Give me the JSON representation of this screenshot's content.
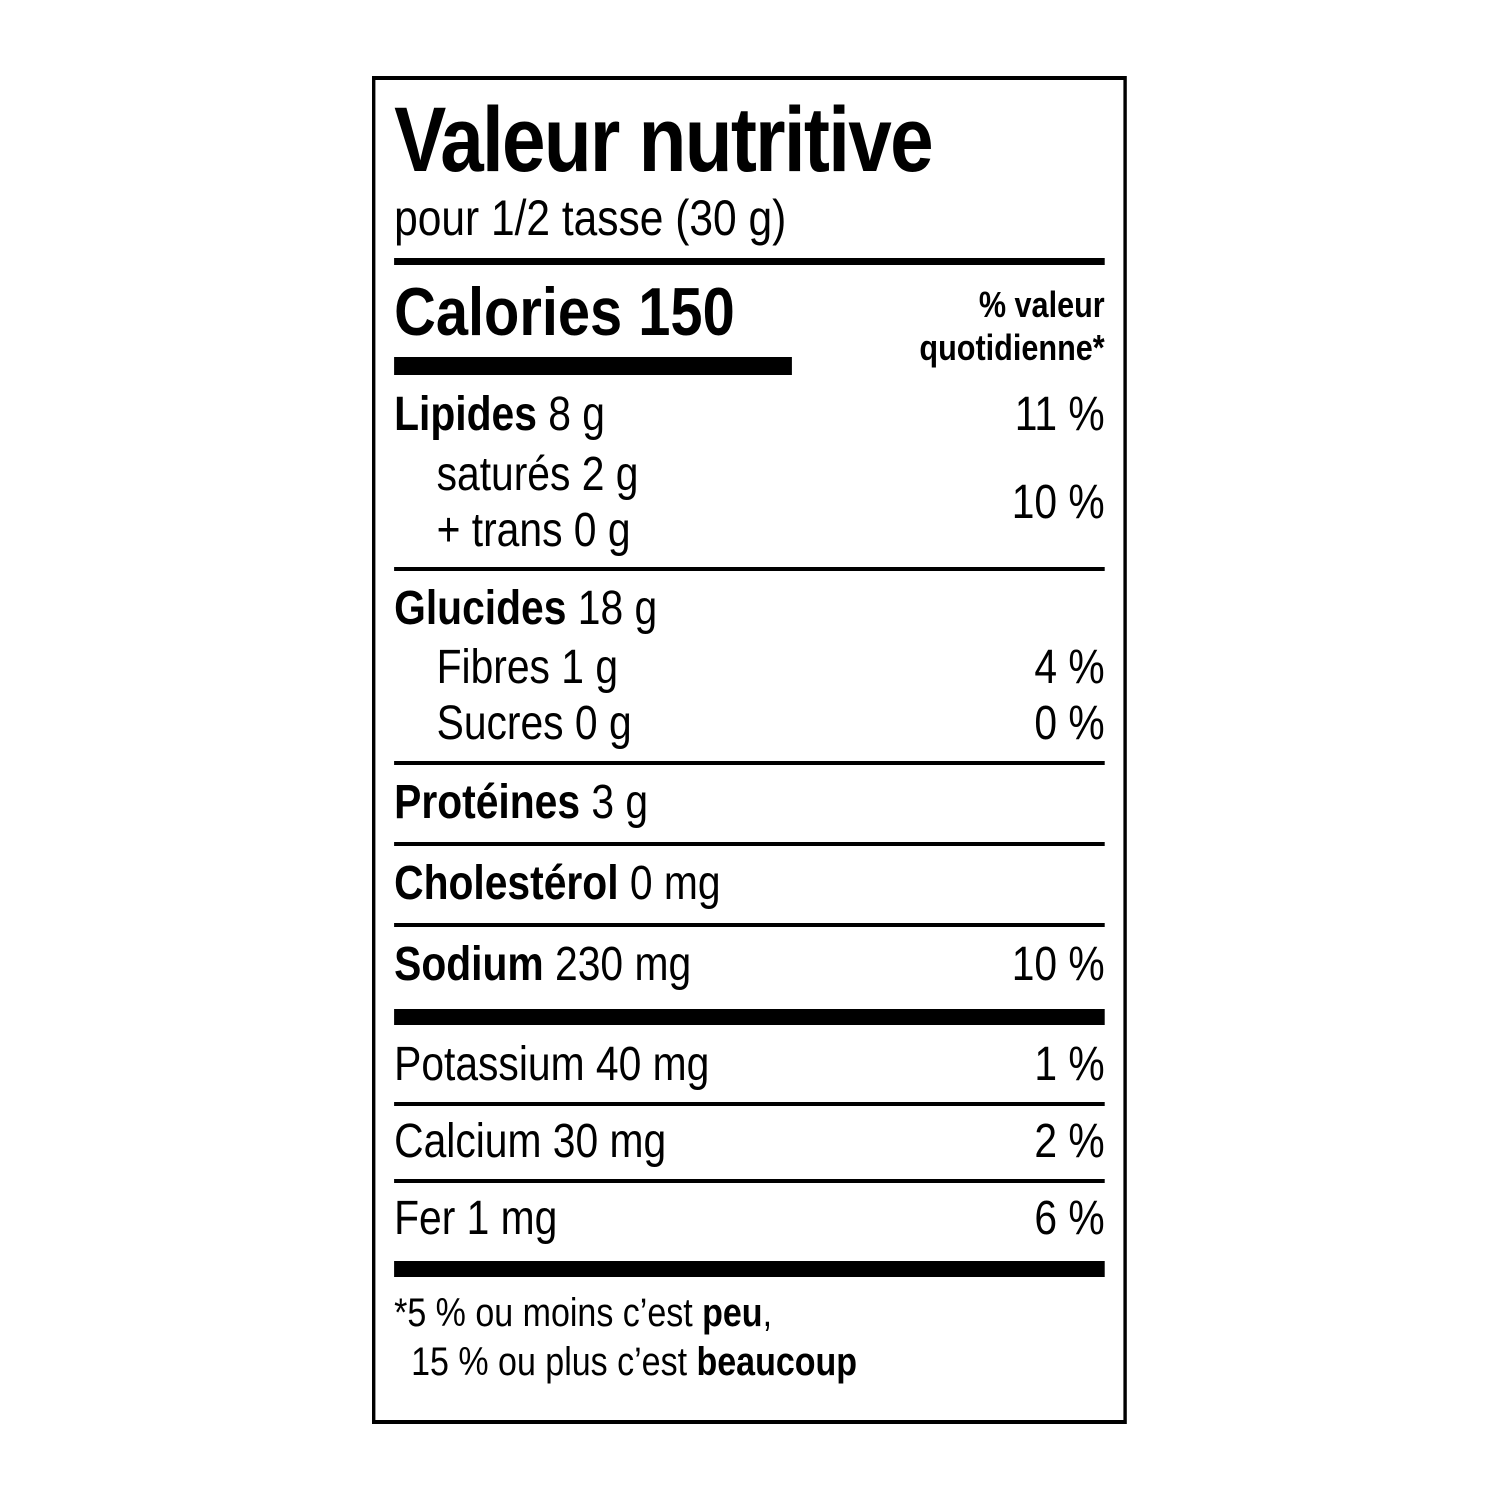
{
  "label": {
    "title": "Valeur nutritive",
    "serving": "pour 1/2 tasse (30 g)",
    "calories": {
      "label": "Calories",
      "value": "150"
    },
    "dv_header": {
      "line1": "% valeur",
      "line2": "quotidienne*"
    },
    "nutrients": {
      "fat": {
        "label": "Lipides",
        "amount": "8 g",
        "dv": "11 %"
      },
      "saturated": {
        "label": "saturés",
        "amount": "2 g"
      },
      "trans": {
        "label": "+ trans",
        "amount": "0 g"
      },
      "sat_trans_dv": "10 %",
      "carb": {
        "label": "Glucides",
        "amount": "18 g",
        "dv": ""
      },
      "fibre": {
        "label": "Fibres",
        "amount": "1 g",
        "dv": "4 %"
      },
      "sugars": {
        "label": "Sucres",
        "amount": "0 g",
        "dv": "0 %"
      },
      "protein": {
        "label": "Protéines",
        "amount": "3 g",
        "dv": ""
      },
      "cholesterol": {
        "label": "Cholestérol",
        "amount": "0 mg",
        "dv": ""
      },
      "sodium": {
        "label": "Sodium",
        "amount": "230 mg",
        "dv": "10 %"
      },
      "potassium": {
        "label": "Potassium",
        "amount": "40 mg",
        "dv": "1 %"
      },
      "calcium": {
        "label": "Calcium",
        "amount": "30 mg",
        "dv": "2 %"
      },
      "iron": {
        "label": "Fer",
        "amount": "1 mg",
        "dv": "6 %"
      }
    },
    "footnote": {
      "line1_prefix": "*5 % ou moins c’est ",
      "line1_bold": "peu",
      "line1_suffix": ",",
      "line2_prefix": "15 % ou plus c’est ",
      "line2_bold": "beaucoup"
    },
    "colors": {
      "ink": "#000000",
      "background": "#ffffff"
    }
  }
}
